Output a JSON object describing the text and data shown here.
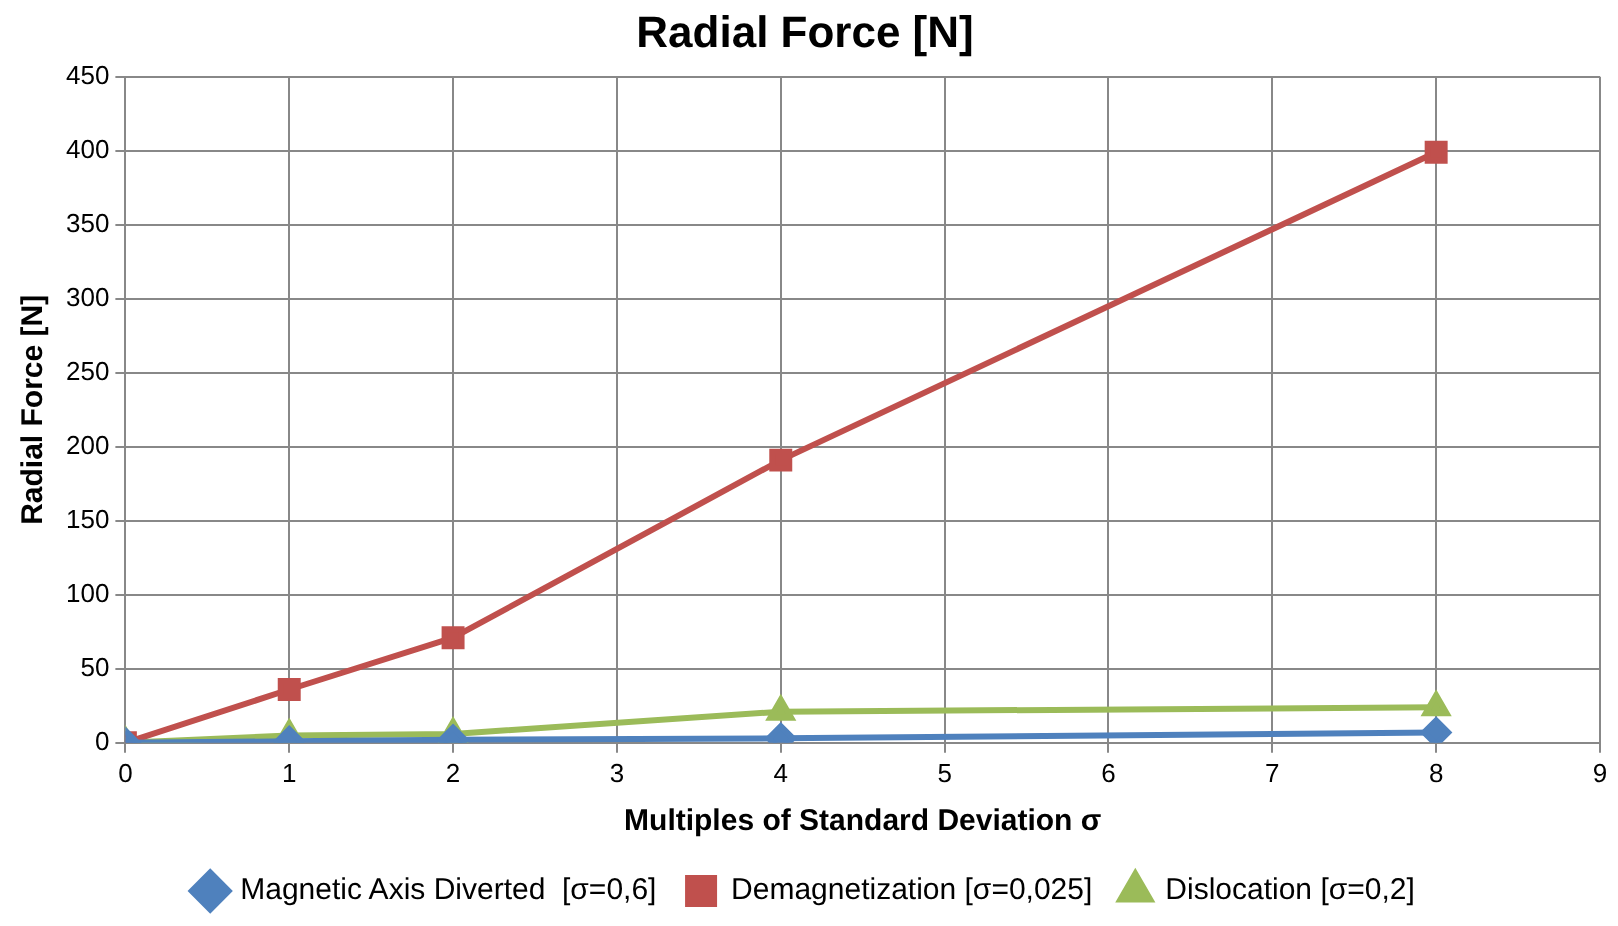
{
  "chart_data": {
    "type": "line",
    "title": "Radial Force [N]",
    "xlabel": "Multiples of Standard Deviation σ",
    "ylabel": "Radial Force [N]",
    "x": [
      0,
      1,
      2,
      4,
      8
    ],
    "series": [
      {
        "name": "Magnetic Axis Diverted  [σ=0,6]",
        "color": "#4f81bd",
        "marker": "diamond",
        "values": [
          0,
          1,
          2,
          3,
          7
        ]
      },
      {
        "name": "Demagnetization [σ=0,025]",
        "color": "#c0504d",
        "marker": "square",
        "values": [
          0,
          36,
          71,
          191,
          399
        ]
      },
      {
        "name": "Dislocation [σ=0,2]",
        "color": "#9bbb59",
        "marker": "triangle",
        "values": [
          0,
          5,
          6,
          21,
          24
        ]
      }
    ],
    "xlim": [
      0,
      9
    ],
    "xticks": [
      0,
      1,
      2,
      3,
      4,
      5,
      6,
      7,
      8,
      9
    ],
    "ylim": [
      0,
      450
    ],
    "yticks": [
      0,
      50,
      100,
      150,
      200,
      250,
      300,
      350,
      400,
      450
    ],
    "grid": true,
    "legend": "bottom",
    "line_style": "solid"
  }
}
